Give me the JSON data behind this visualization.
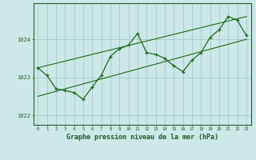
{
  "x_values": [
    0,
    1,
    2,
    3,
    4,
    5,
    6,
    7,
    8,
    9,
    10,
    11,
    12,
    13,
    14,
    15,
    16,
    17,
    18,
    19,
    20,
    21,
    22,
    23
  ],
  "y_values": [
    1023.25,
    1023.05,
    1022.7,
    1022.65,
    1022.6,
    1022.42,
    1022.75,
    1023.05,
    1023.55,
    1023.75,
    1023.85,
    1024.15,
    1023.65,
    1023.6,
    1023.5,
    1023.3,
    1023.15,
    1023.45,
    1023.65,
    1024.05,
    1024.25,
    1024.6,
    1024.5,
    1024.1
  ],
  "line_color": "#1a6b1a",
  "marker_color": "#1a6b1a",
  "bg_color": "#cce8e8",
  "grid_color": "#9ec4c4",
  "axis_color": "#2a5a2a",
  "xlabel": "Graphe pression niveau de la mer (hPa)",
  "ylim": [
    1021.75,
    1024.95
  ],
  "yticks": [
    1022,
    1023,
    1024
  ],
  "xlim": [
    -0.5,
    23.5
  ],
  "label_color": "#1a5a1a",
  "lower_line_x": [
    0,
    23
  ],
  "lower_line_y": [
    1022.5,
    1024.0
  ],
  "upper_line_x": [
    0,
    23
  ],
  "upper_line_y": [
    1023.25,
    1024.6
  ]
}
